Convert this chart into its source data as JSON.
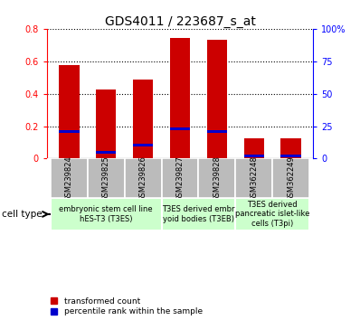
{
  "title": "GDS4011 / 223687_s_at",
  "samples": [
    "GSM239824",
    "GSM239825",
    "GSM239826",
    "GSM239827",
    "GSM239828",
    "GSM362248",
    "GSM362249"
  ],
  "red_values": [
    0.575,
    0.425,
    0.485,
    0.745,
    0.73,
    0.125,
    0.125
  ],
  "blue_values": [
    0.165,
    0.04,
    0.085,
    0.185,
    0.165,
    0.015,
    0.015
  ],
  "ylim_left": [
    0,
    0.8
  ],
  "ylim_right": [
    0,
    100
  ],
  "yticks_left": [
    0,
    0.2,
    0.4,
    0.6,
    0.8
  ],
  "ytick_labels_left": [
    "0",
    "0.2",
    "0.4",
    "0.6",
    "0.8"
  ],
  "yticks_right": [
    0,
    25,
    50,
    75,
    100
  ],
  "ytick_labels_right": [
    "0",
    "25",
    "50",
    "75",
    "100%"
  ],
  "group_defs": [
    {
      "start": 0,
      "end": 2,
      "label": "embryonic stem cell line\nhES-T3 (T3ES)"
    },
    {
      "start": 3,
      "end": 4,
      "label": "T3ES derived embr\nyoid bodies (T3EB)"
    },
    {
      "start": 5,
      "end": 6,
      "label": "T3ES derived\npancreatic islet-like\ncells (T3pi)"
    }
  ],
  "cell_type_label": "cell type",
  "legend_red": "transformed count",
  "legend_blue": "percentile rank within the sample",
  "bar_width": 0.55,
  "blue_bar_width": 0.55,
  "blue_bar_height": 0.018,
  "red_color": "#cc0000",
  "blue_color": "#0000cc",
  "tick_area_color": "#bbbbbb",
  "group_color": "#ccffcc",
  "grid_color": "black",
  "title_fontsize": 10,
  "tick_fontsize": 7,
  "sample_fontsize": 6,
  "group_fontsize": 6
}
